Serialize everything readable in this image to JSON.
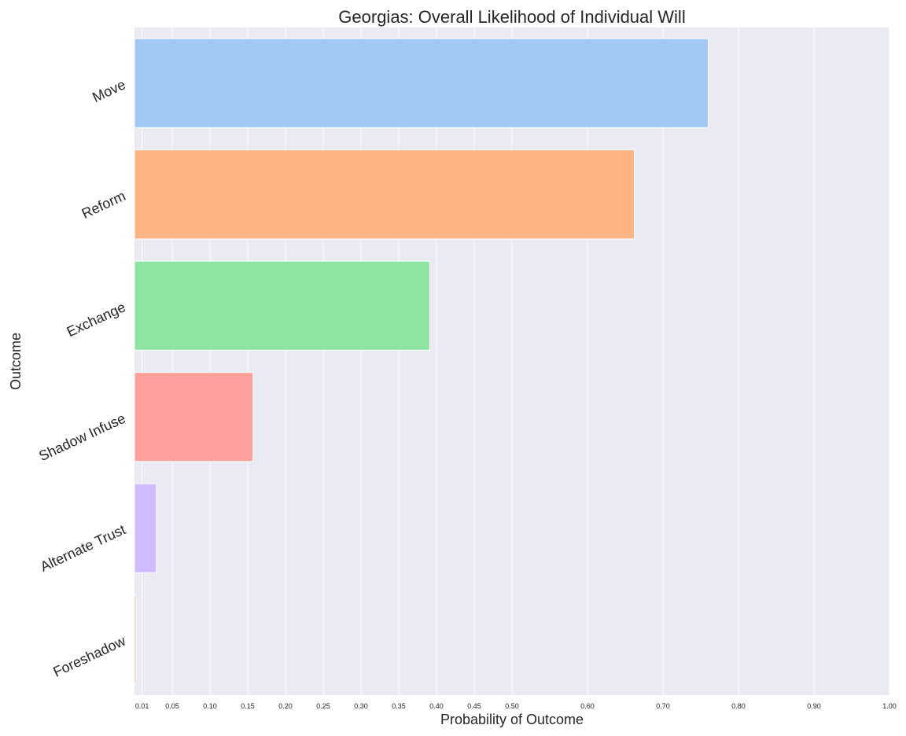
{
  "chart_data": {
    "type": "bar",
    "orientation": "horizontal",
    "title": "Georgias: Overall Likelihood of Individual Will",
    "xlabel": "Probability of Outcome",
    "ylabel": "Outcome",
    "categories": [
      "Move",
      "Reform",
      "Exchange",
      "Shadow Infuse",
      "Alternate Trust",
      "Foreshadow"
    ],
    "values": [
      0.76,
      0.662,
      0.391,
      0.157,
      0.029,
      0.002
    ],
    "colors": [
      "#a1c9f4",
      "#ffb482",
      "#8de5a1",
      "#ff9f9b",
      "#d0bbff",
      "#debb9b"
    ],
    "xlim": [
      0,
      1.0
    ],
    "xticks": [
      0.01,
      0.05,
      0.1,
      0.15,
      0.2,
      0.25,
      0.3,
      0.35,
      0.4,
      0.45,
      0.5,
      0.6,
      0.7,
      0.8,
      0.9,
      1.0
    ],
    "xtick_labels": [
      "0.01",
      "0.05",
      "0.10",
      "0.15",
      "0.20",
      "0.25",
      "0.30",
      "0.35",
      "0.40",
      "0.45",
      "0.50",
      "0.60",
      "0.70",
      "0.80",
      "0.90",
      "1.00"
    ],
    "grid": true,
    "background": "#eaeaf2"
  }
}
